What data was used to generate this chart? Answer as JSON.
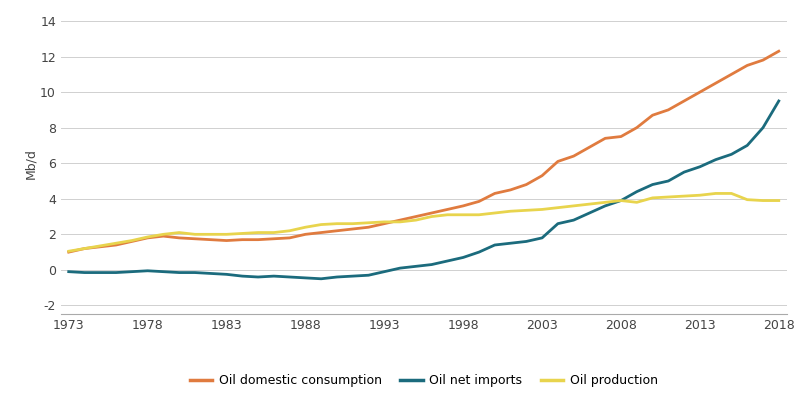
{
  "years": [
    1973,
    1974,
    1975,
    1976,
    1977,
    1978,
    1979,
    1980,
    1981,
    1982,
    1983,
    1984,
    1985,
    1986,
    1987,
    1988,
    1989,
    1990,
    1991,
    1992,
    1993,
    1994,
    1995,
    1996,
    1997,
    1998,
    1999,
    2000,
    2001,
    2002,
    2003,
    2004,
    2005,
    2006,
    2007,
    2008,
    2009,
    2010,
    2011,
    2012,
    2013,
    2014,
    2015,
    2016,
    2017,
    2018
  ],
  "consumption": [
    1.0,
    1.2,
    1.3,
    1.4,
    1.6,
    1.8,
    1.9,
    1.8,
    1.75,
    1.7,
    1.65,
    1.7,
    1.7,
    1.75,
    1.8,
    2.0,
    2.1,
    2.2,
    2.3,
    2.4,
    2.6,
    2.8,
    3.0,
    3.2,
    3.4,
    3.6,
    3.85,
    4.3,
    4.5,
    4.8,
    5.3,
    6.1,
    6.4,
    6.9,
    7.4,
    7.5,
    8.0,
    8.7,
    9.0,
    9.5,
    10.0,
    10.5,
    11.0,
    11.5,
    11.8,
    12.3
  ],
  "net_imports": [
    -0.1,
    -0.15,
    -0.15,
    -0.15,
    -0.1,
    -0.05,
    -0.1,
    -0.15,
    -0.15,
    -0.2,
    -0.25,
    -0.35,
    -0.4,
    -0.35,
    -0.4,
    -0.45,
    -0.5,
    -0.4,
    -0.35,
    -0.3,
    -0.1,
    0.1,
    0.2,
    0.3,
    0.5,
    0.7,
    1.0,
    1.4,
    1.5,
    1.6,
    1.8,
    2.6,
    2.8,
    3.2,
    3.6,
    3.9,
    4.4,
    4.8,
    5.0,
    5.5,
    5.8,
    6.2,
    6.5,
    7.0,
    8.0,
    9.5
  ],
  "production": [
    1.05,
    1.2,
    1.35,
    1.5,
    1.65,
    1.85,
    2.0,
    2.1,
    2.0,
    2.0,
    2.0,
    2.05,
    2.1,
    2.1,
    2.2,
    2.4,
    2.55,
    2.6,
    2.6,
    2.65,
    2.7,
    2.7,
    2.8,
    3.0,
    3.1,
    3.1,
    3.1,
    3.2,
    3.3,
    3.35,
    3.4,
    3.5,
    3.6,
    3.7,
    3.8,
    3.9,
    3.8,
    4.05,
    4.1,
    4.15,
    4.2,
    4.3,
    4.3,
    3.95,
    3.9,
    3.9
  ],
  "consumption_color": "#E07B3F",
  "net_imports_color": "#1B6B7D",
  "production_color": "#E8D44D",
  "ylabel": "Mb/d",
  "ylim": [
    -2.5,
    14.5
  ],
  "yticks": [
    0,
    2,
    4,
    6,
    8,
    10,
    12,
    14
  ],
  "ytick_extra": -2,
  "xticks": [
    1973,
    1978,
    1983,
    1988,
    1993,
    1998,
    2003,
    2008,
    2013,
    2018
  ],
  "legend_consumption": "Oil domestic consumption",
  "legend_imports": "Oil net imports",
  "legend_production": "Oil production",
  "line_width": 2.0,
  "grid_color": "#d0d0d0",
  "bg_color": "#ffffff"
}
